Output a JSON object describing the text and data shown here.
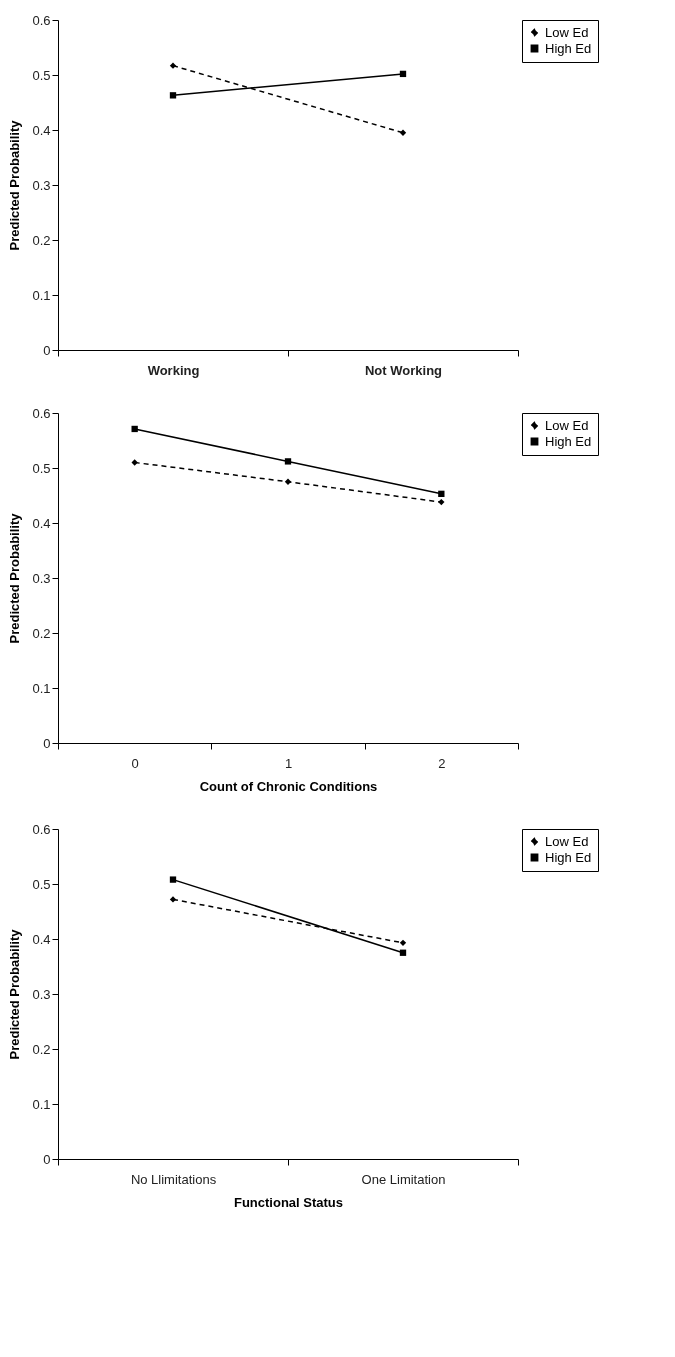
{
  "chart_data": [
    {
      "type": "line",
      "ylabel": "Predicted Probability",
      "categories": [
        "Working",
        "Not Working"
      ],
      "ylim": [
        0,
        0.6
      ],
      "yticks": [
        0,
        0.1,
        0.2,
        0.3,
        0.4,
        0.5,
        0.6
      ],
      "legend": "right",
      "grid": false,
      "series": [
        {
          "name": "Low Ed",
          "color": "#000000",
          "values": [
            0.517,
            0.395
          ],
          "line_style": "dashed",
          "marker": "diamond"
        },
        {
          "name": "High Ed",
          "color": "#000000",
          "values": [
            0.463,
            0.502
          ],
          "line_style": "solid",
          "marker": "square"
        }
      ]
    },
    {
      "type": "line",
      "xlabel": "Count of Chronic Conditions",
      "ylabel": "Predicted Probability",
      "categories": [
        "0",
        "1",
        "2"
      ],
      "ylim": [
        0,
        0.6
      ],
      "yticks": [
        0,
        0.1,
        0.2,
        0.3,
        0.4,
        0.5,
        0.6
      ],
      "legend": "right",
      "grid": false,
      "series": [
        {
          "name": "Low Ed",
          "color": "#000000",
          "values": [
            0.51,
            0.475,
            0.438
          ],
          "line_style": "dashed",
          "marker": "diamond"
        },
        {
          "name": "High Ed",
          "color": "#000000",
          "values": [
            0.571,
            0.512,
            0.453
          ],
          "line_style": "solid",
          "marker": "square"
        }
      ]
    },
    {
      "type": "line",
      "xlabel": "Functional Status",
      "ylabel": "Predicted Probability",
      "categories": [
        "No Llimitations",
        "One Limitation"
      ],
      "ylim": [
        0,
        0.6
      ],
      "yticks": [
        0,
        0.1,
        0.2,
        0.3,
        0.4,
        0.5,
        0.6
      ],
      "legend": "right",
      "grid": false,
      "series": [
        {
          "name": "Low Ed",
          "color": "#000000",
          "values": [
            0.472,
            0.393
          ],
          "line_style": "dashed",
          "marker": "diamond"
        },
        {
          "name": "High Ed",
          "color": "#000000",
          "values": [
            0.508,
            0.375
          ],
          "line_style": "solid",
          "marker": "square"
        }
      ]
    }
  ]
}
